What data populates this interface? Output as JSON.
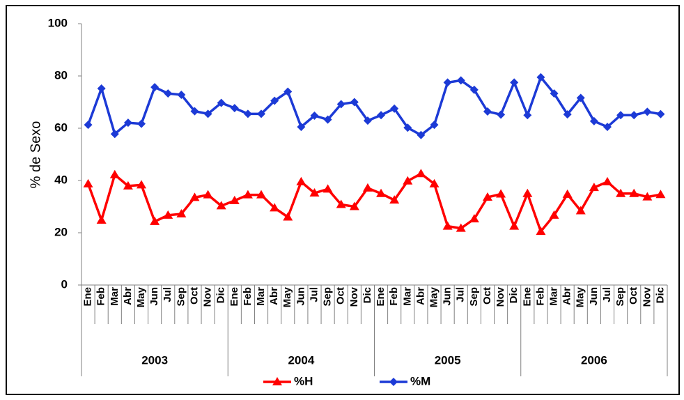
{
  "chart_data": {
    "type": "line",
    "y_label": "% de Sexo",
    "categories": [
      "Ene",
      "Feb",
      "Mar",
      "Abr",
      "May",
      "Jun",
      "Jul",
      "Sep",
      "Oct",
      "Nov",
      "Dic",
      "Ene",
      "Feb",
      "Mar",
      "Abr",
      "May",
      "Jun",
      "Jul",
      "Sep",
      "Oct",
      "Nov",
      "Dic",
      "Ene",
      "Feb",
      "Mar",
      "Abr",
      "May",
      "Jun",
      "Jul",
      "Sep",
      "Oct",
      "Nov",
      "Dic",
      "Ene",
      "Feb",
      "Mar",
      "Abr",
      "May",
      "Jun",
      "Jul",
      "Sep",
      "Oct",
      "Nov",
      "Dic"
    ],
    "groups": [
      "2003",
      "2004",
      "2005",
      "2006"
    ],
    "series": [
      {
        "name": "%H",
        "color": "#ff0000",
        "marker": "triangle",
        "values": [
          38.7,
          24.8,
          42.2,
          37.9,
          38.3,
          24.3,
          26.7,
          27.2,
          33.5,
          34.5,
          30.3,
          32.3,
          34.5,
          34.5,
          29.5,
          26.0,
          39.5,
          35.2,
          36.7,
          30.8,
          30.0,
          37.1,
          35.0,
          32.5,
          39.8,
          42.6,
          38.7,
          22.5,
          21.7,
          25.3,
          33.6,
          34.8,
          22.5,
          35.0,
          20.5,
          26.7,
          34.7,
          28.4,
          37.3,
          39.5,
          35.0,
          35.0,
          33.7,
          34.6
        ]
      },
      {
        "name": "%M",
        "color": "#1c3ad6",
        "marker": "diamond",
        "values": [
          61.3,
          75.2,
          57.8,
          62.1,
          61.7,
          75.7,
          73.3,
          72.8,
          66.5,
          65.5,
          69.7,
          67.7,
          65.5,
          65.5,
          70.5,
          74.0,
          60.5,
          64.8,
          63.3,
          69.2,
          70.0,
          62.9,
          65.0,
          67.5,
          60.2,
          57.4,
          61.3,
          77.5,
          78.3,
          74.7,
          66.4,
          65.2,
          77.5,
          65.0,
          79.5,
          73.3,
          65.3,
          71.6,
          62.7,
          60.5,
          65.0,
          65.0,
          66.3,
          65.4
        ]
      }
    ],
    "ylim": [
      0,
      100
    ],
    "yticks": [
      0,
      20,
      40,
      60,
      80,
      100
    ],
    "legend": "bottom"
  }
}
